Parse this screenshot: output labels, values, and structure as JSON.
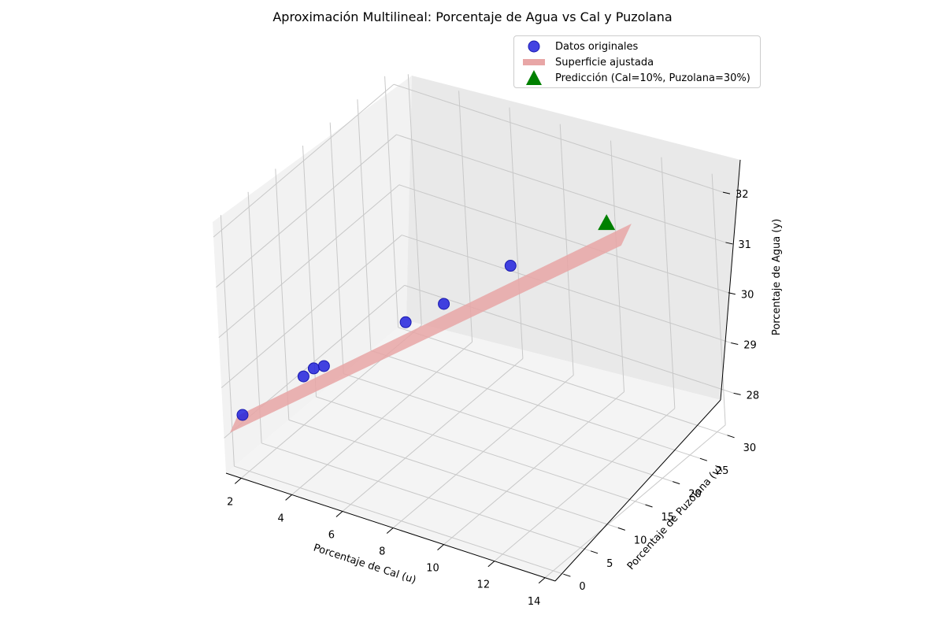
{
  "chart_data": {
    "type": "scatter",
    "projection": "3d",
    "title": "Aproximación Multilineal: Porcentaje de Agua vs Cal y Puzolana",
    "xlabel": "Porcentaje de Cal (u)",
    "ylabel": "Porcentaje de Puzolana (v)",
    "zlabel": "Porcentaje de Agua (y)",
    "x_ticks": [
      2,
      4,
      6,
      8,
      10,
      12,
      14
    ],
    "y_ticks": [
      0,
      5,
      10,
      15,
      20,
      25,
      30
    ],
    "z_ticks": [
      28,
      29,
      30,
      31,
      32
    ],
    "xlim": [
      1.4,
      14.4
    ],
    "ylim": [
      -1.5,
      31.5
    ],
    "zlim": [
      27.3,
      32.3
    ],
    "grid": true,
    "legend_position": "upper right",
    "legend": [
      "Datos originales",
      "Superficie ajustada",
      "Predicción (Cal=10%, Puzolana=30%)"
    ],
    "series": [
      {
        "name": "Datos originales",
        "kind": "scatter",
        "color": "#2222dd",
        "points": [
          {
            "u": 1.5,
            "v": 1.5,
            "y": 28.2
          },
          {
            "u": 3.0,
            "v": 6.0,
            "y": 28.8
          },
          {
            "u": 3.2,
            "v": 7.0,
            "y": 28.9
          },
          {
            "u": 3.5,
            "v": 7.5,
            "y": 28.95
          },
          {
            "u": 5.5,
            "v": 13.5,
            "y": 29.6
          },
          {
            "u": 6.5,
            "v": 16.0,
            "y": 29.9
          },
          {
            "u": 8.0,
            "v": 21.5,
            "y": 30.4
          }
        ]
      },
      {
        "name": "Superficie ajustada",
        "kind": "surface",
        "color": "#e8a6a6"
      },
      {
        "name": "Predicción (Cal=10%, Puzolana=30%)",
        "kind": "scatter",
        "marker": "triangle",
        "color": "#008000",
        "points": [
          {
            "u": 10,
            "v": 30,
            "y": 30.8
          }
        ]
      }
    ]
  }
}
